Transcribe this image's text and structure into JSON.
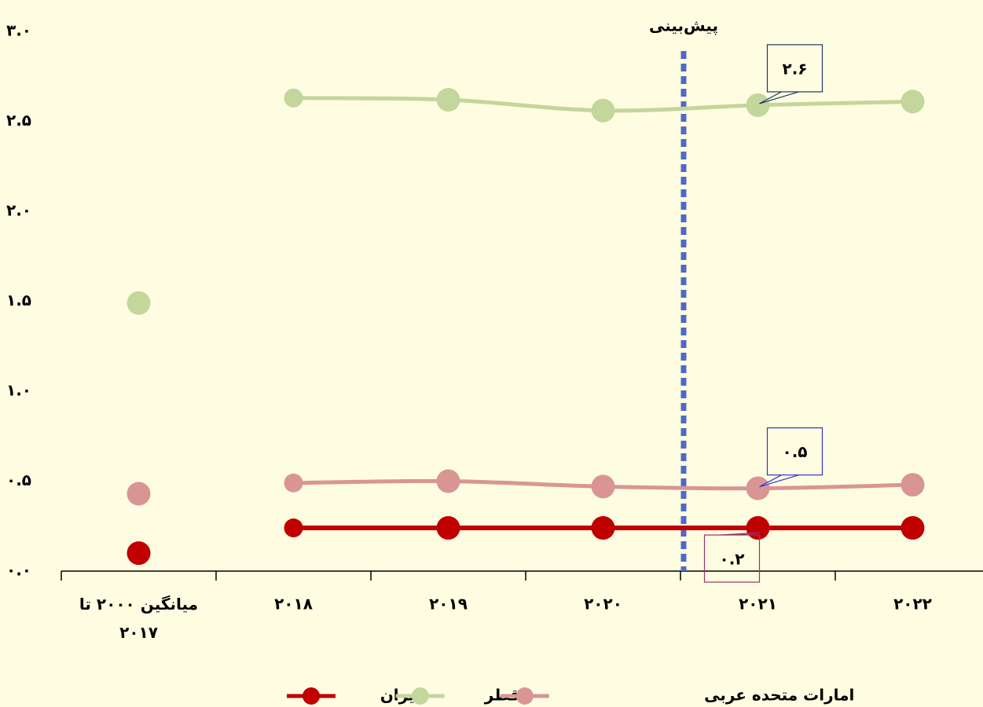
{
  "chart_data": {
    "type": "line",
    "categories": [
      "میانگین ۲۰۰۰ تا ۲۰۱۷",
      "۲۰۱۸",
      "۲۰۱۹",
      "۲۰۲۰",
      "۲۰۲۱",
      "۲۰۲۲"
    ],
    "series": [
      {
        "name": "ایران",
        "color": "#c00000",
        "values": [
          0.1,
          0.24,
          0.24,
          0.24,
          0.24,
          0.24
        ],
        "value_labels": [
          null,
          null,
          null,
          null,
          "۰.۲",
          null
        ],
        "label_color": "#c00000",
        "label_border": "#993366"
      },
      {
        "name": "قطر",
        "color": "#c3d69b",
        "values": [
          1.49,
          2.63,
          2.62,
          2.56,
          2.59,
          2.61
        ],
        "value_labels": [
          null,
          null,
          null,
          null,
          "۲.۶",
          null
        ],
        "label_color": "#1f3864",
        "label_border": "#1f3864"
      },
      {
        "name": "امارات متحده عربی",
        "color": "#d99594",
        "values": [
          0.43,
          0.49,
          0.5,
          0.47,
          0.46,
          0.48
        ],
        "value_labels": [
          null,
          null,
          null,
          null,
          "۰.۵",
          null
        ],
        "label_color": "#3333cc",
        "label_border": "#3333cc"
      }
    ],
    "connect_first": false,
    "ylim": [
      0,
      3
    ],
    "yticks": [
      {
        "value": 0,
        "label": "۰.۰"
      },
      {
        "value": 0.5,
        "label": "۰.۵"
      },
      {
        "value": 1,
        "label": "۱.۰"
      },
      {
        "value": 1.5,
        "label": "۱.۵"
      },
      {
        "value": 2,
        "label": "۲.۰"
      },
      {
        "value": 2.5,
        "label": "۲.۵"
      },
      {
        "value": 3,
        "label": "۳.۰"
      }
    ],
    "forecast_label": "پیش‌بینی",
    "forecast_color": "#5068c8",
    "legend": "bottom"
  }
}
